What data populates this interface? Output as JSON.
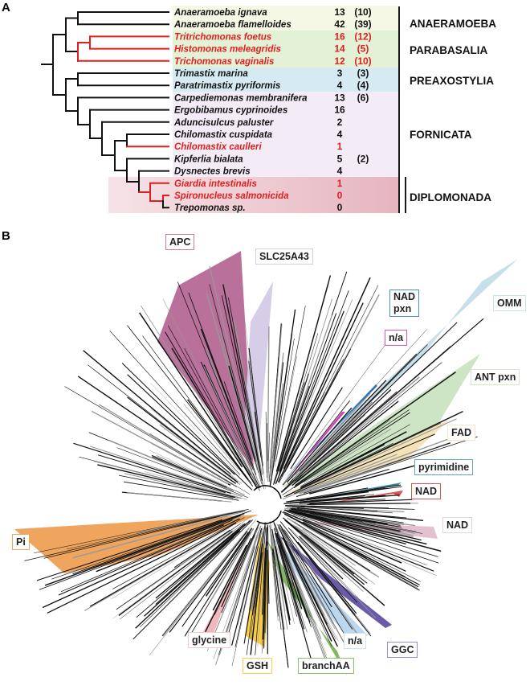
{
  "panel_a": {
    "letter": "A",
    "taxa": [
      {
        "name": "Anaeramoeba ignava",
        "count": "13",
        "paren": "(10)",
        "red": false
      },
      {
        "name": "Anaeramoeba flamelloides",
        "count": "42",
        "paren": "(39)",
        "red": false
      },
      {
        "name": "Tritrichomonas foetus",
        "count": "16",
        "paren": "(12)",
        "red": true
      },
      {
        "name": "Histomonas meleagridis",
        "count": "14",
        "paren": "(5)",
        "red": true
      },
      {
        "name": "Trichomonas vaginalis",
        "count": "12",
        "paren": "(10)",
        "red": true
      },
      {
        "name": "Trimastix marina",
        "count": "3",
        "paren": "(3)",
        "red": false
      },
      {
        "name": "Paratrimastix pyriformis",
        "count": "4",
        "paren": "(4)",
        "red": false
      },
      {
        "name": "Carpediemonas membranifera",
        "count": "13",
        "paren": "(6)",
        "red": false
      },
      {
        "name": "Ergobibamus cyprinoides",
        "count": "16",
        "paren": "",
        "red": false
      },
      {
        "name": "Aduncisulcus paluster",
        "count": "2",
        "paren": "",
        "red": false
      },
      {
        "name": "Chilomastix cuspidata",
        "count": "4",
        "paren": "",
        "red": false
      },
      {
        "name": "Chilomastix caulleri",
        "count": "1",
        "paren": "",
        "red": true
      },
      {
        "name": "Kipferlia bialata",
        "count": "5",
        "paren": "(2)",
        "red": false
      },
      {
        "name": "Dysnectes brevis",
        "count": "4",
        "paren": "",
        "red": false
      },
      {
        "name": "Giardia intestinalis",
        "count": "1",
        "paren": "",
        "red": true
      },
      {
        "name": "Spironucleus salmonicida",
        "count": "0",
        "paren": "",
        "red": true
      },
      {
        "name": "Trepomonas sp.",
        "count": "0",
        "paren": "",
        "red": false
      }
    ],
    "groups": [
      {
        "label": "ANAERAMOEBA",
        "color": "#f4f8e4"
      },
      {
        "label": "PARABASALIA",
        "color": "#e3f2d6"
      },
      {
        "label": "PREAXOSTYLIA",
        "color": "#d5ebf1"
      },
      {
        "label": "FORNICATA",
        "color": "#f3ecf7"
      },
      {
        "label": "DIPLOMONADA",
        "color": "#e9bcc5"
      }
    ],
    "highlight_color": "#e01f1f"
  },
  "panel_b": {
    "letter": "B",
    "clades": [
      {
        "label": "APC",
        "color": "#b9709a",
        "border": "#c77fa6"
      },
      {
        "label": "SLC25A43",
        "color": "#d6cee8",
        "border": "#d6cee8"
      },
      {
        "label": "NAD pxn",
        "line1": "NAD",
        "line2": "pxn",
        "color": "#3f86c9",
        "border": "#4a90d0"
      },
      {
        "label": "OMM",
        "color": "#c7dfe8",
        "border": "#cfe4e8"
      },
      {
        "label": "n/a",
        "color": "#d63fb4",
        "border": "#e052c4"
      },
      {
        "label": "ANT pxn",
        "color": "#cde4c5",
        "border": "#d5e8cd"
      },
      {
        "label": "FAD",
        "color": "#f5e3b8",
        "border": "#f5e8c4"
      },
      {
        "label": "pyrimidine",
        "color": "#3f8aa0",
        "border": "#6ba2b4"
      },
      {
        "label": "NAD",
        "color": "#d9534f",
        "border": "#d9534f"
      },
      {
        "label": "NAD",
        "color": "#e4c1d1",
        "border": "#ead0dc"
      },
      {
        "label": "Pi",
        "color": "#f0a55e",
        "border": "#f0a55e"
      },
      {
        "label": "glycine",
        "color": "#f0b8bd",
        "border": "#f3c9cc"
      },
      {
        "label": "GSH",
        "color": "#f7cc4a",
        "border": "#f5d255"
      },
      {
        "label": "branchAA",
        "color": "#7fb85e",
        "border": "#8cc06c"
      },
      {
        "label": "n/a",
        "color": "#bcd7ee",
        "border": "#cfe2f3"
      },
      {
        "label": "GGC",
        "color": "#6a5aa8",
        "border": "#9b8fcc"
      }
    ]
  }
}
